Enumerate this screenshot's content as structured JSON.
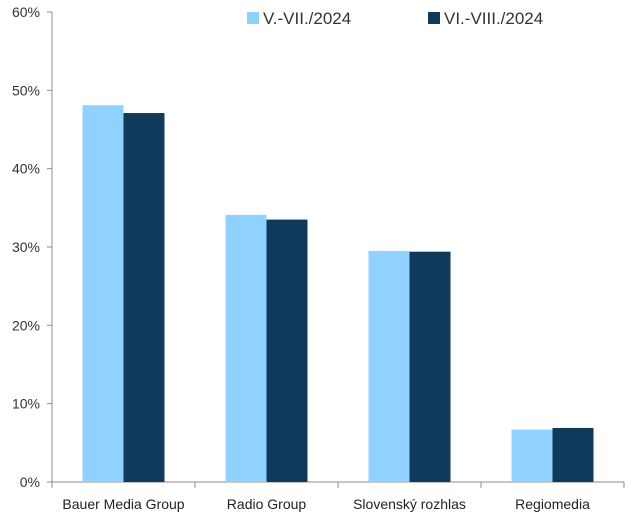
{
  "chart_data": {
    "type": "bar",
    "title": "",
    "xlabel": "",
    "ylabel": "",
    "categories": [
      "Bauer Media Group",
      "Radio Group",
      "Slovenský rozhlas",
      "Regiomedia"
    ],
    "series": [
      {
        "name": "V.-VII./2024",
        "values": [
          48.1,
          34.1,
          29.5,
          6.7
        ],
        "color": "#8fd2ff"
      },
      {
        "name": "VI.-VIII./2024",
        "values": [
          47.1,
          33.5,
          29.4,
          6.9
        ],
        "color": "#0f3a5c"
      }
    ],
    "ylim": [
      0,
      60
    ],
    "yticks": [
      "0%",
      "10%",
      "20%",
      "30%",
      "40%",
      "50%",
      "60%"
    ],
    "grid": false,
    "legend_position": "top-right"
  }
}
